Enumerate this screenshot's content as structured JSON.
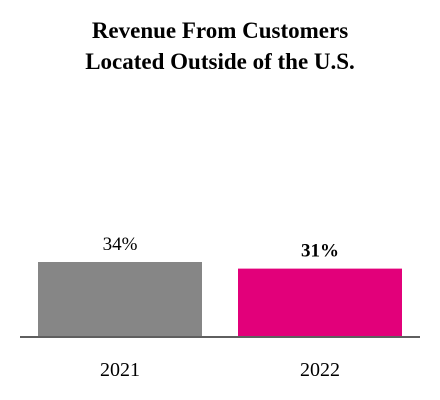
{
  "chart_data": {
    "type": "bar",
    "title": [
      "Revenue From Customers",
      "Located Outside of the U.S."
    ],
    "xlabel": "",
    "ylabel": "",
    "categories": [
      "2021",
      "2022"
    ],
    "values": [
      34,
      31
    ],
    "data_labels": [
      "34%",
      "31%"
    ],
    "label_bold": [
      false,
      true
    ],
    "colors": [
      "#868686",
      "#e2007a"
    ],
    "ylim": [
      0,
      80
    ],
    "grid": false,
    "legend": "none"
  }
}
